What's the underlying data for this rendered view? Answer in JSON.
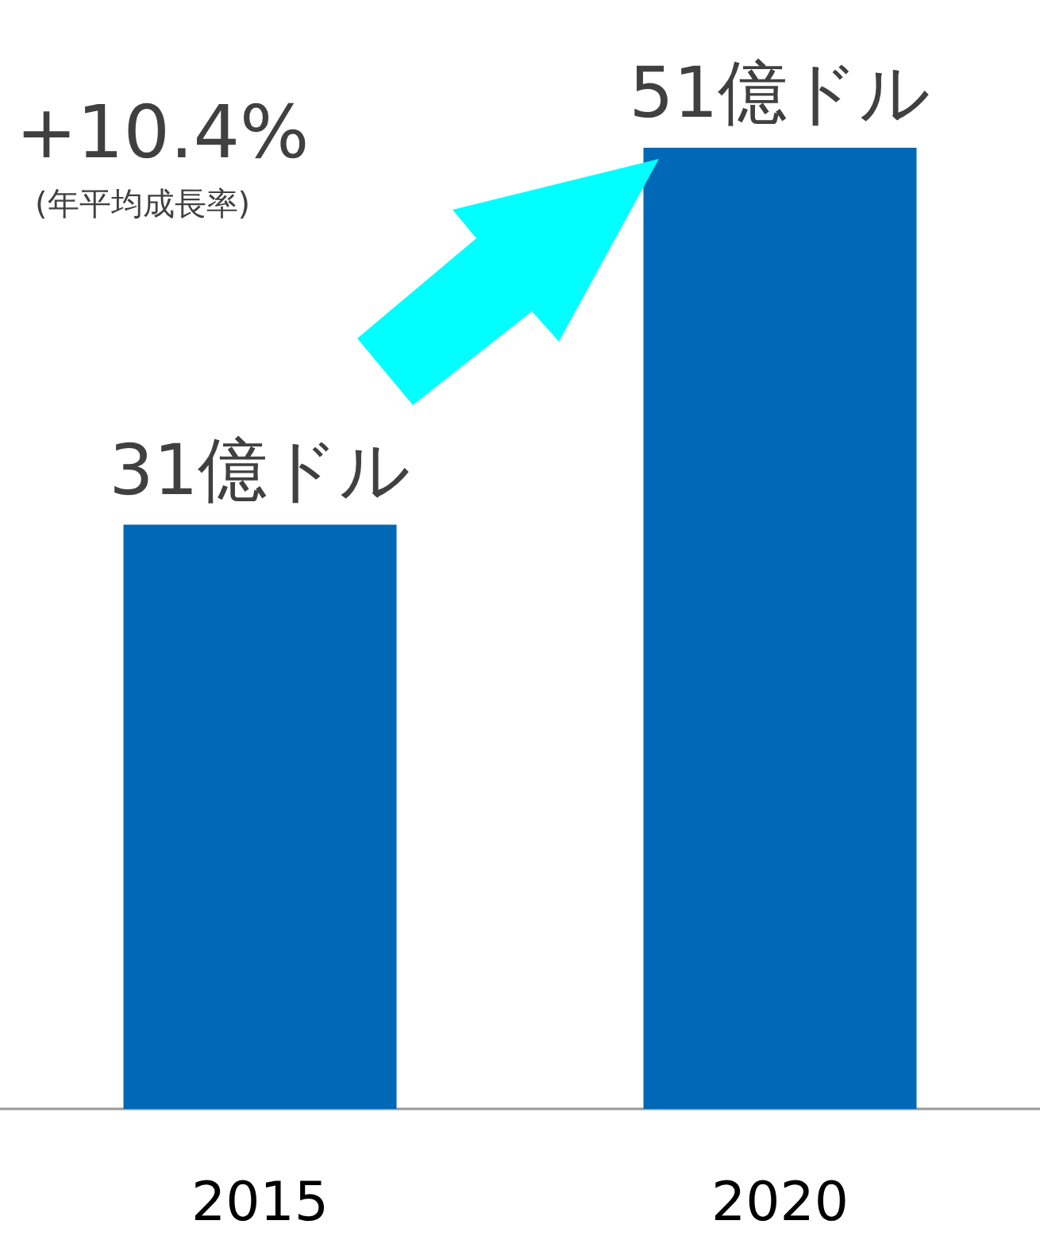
{
  "chart_data": {
    "type": "bar",
    "categories": [
      "2015",
      "2020"
    ],
    "values": [
      31,
      51
    ],
    "value_labels": [
      "31億ドル",
      "51億ドル"
    ],
    "color": "#0068b7",
    "annotations": [
      "+10.4%",
      "(年平均成長率)"
    ]
  }
}
